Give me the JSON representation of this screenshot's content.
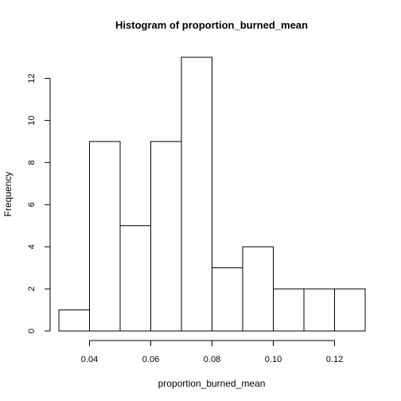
{
  "chart_data": {
    "type": "bar",
    "title": "Histogram of proportion_burned_mean",
    "xlabel": "proportion_burned_mean",
    "ylabel": "Frequency",
    "bins": [
      {
        "start": 0.03,
        "end": 0.04,
        "count": 1
      },
      {
        "start": 0.04,
        "end": 0.05,
        "count": 9
      },
      {
        "start": 0.05,
        "end": 0.06,
        "count": 5
      },
      {
        "start": 0.06,
        "end": 0.07,
        "count": 9
      },
      {
        "start": 0.07,
        "end": 0.08,
        "count": 13
      },
      {
        "start": 0.08,
        "end": 0.09,
        "count": 3
      },
      {
        "start": 0.09,
        "end": 0.1,
        "count": 4
      },
      {
        "start": 0.1,
        "end": 0.11,
        "count": 2
      },
      {
        "start": 0.11,
        "end": 0.12,
        "count": 2
      },
      {
        "start": 0.12,
        "end": 0.13,
        "count": 2
      }
    ],
    "xlim": [
      0.03,
      0.13
    ],
    "ylim": [
      0,
      13
    ],
    "x_ticks": [
      "0.04",
      "0.06",
      "0.08",
      "0.10",
      "0.12"
    ],
    "y_ticks": [
      "0",
      "2",
      "4",
      "6",
      "8",
      "10",
      "12"
    ],
    "grid": false,
    "colors": {
      "bar_fill": "#ffffff",
      "bar_stroke": "#000000"
    }
  }
}
